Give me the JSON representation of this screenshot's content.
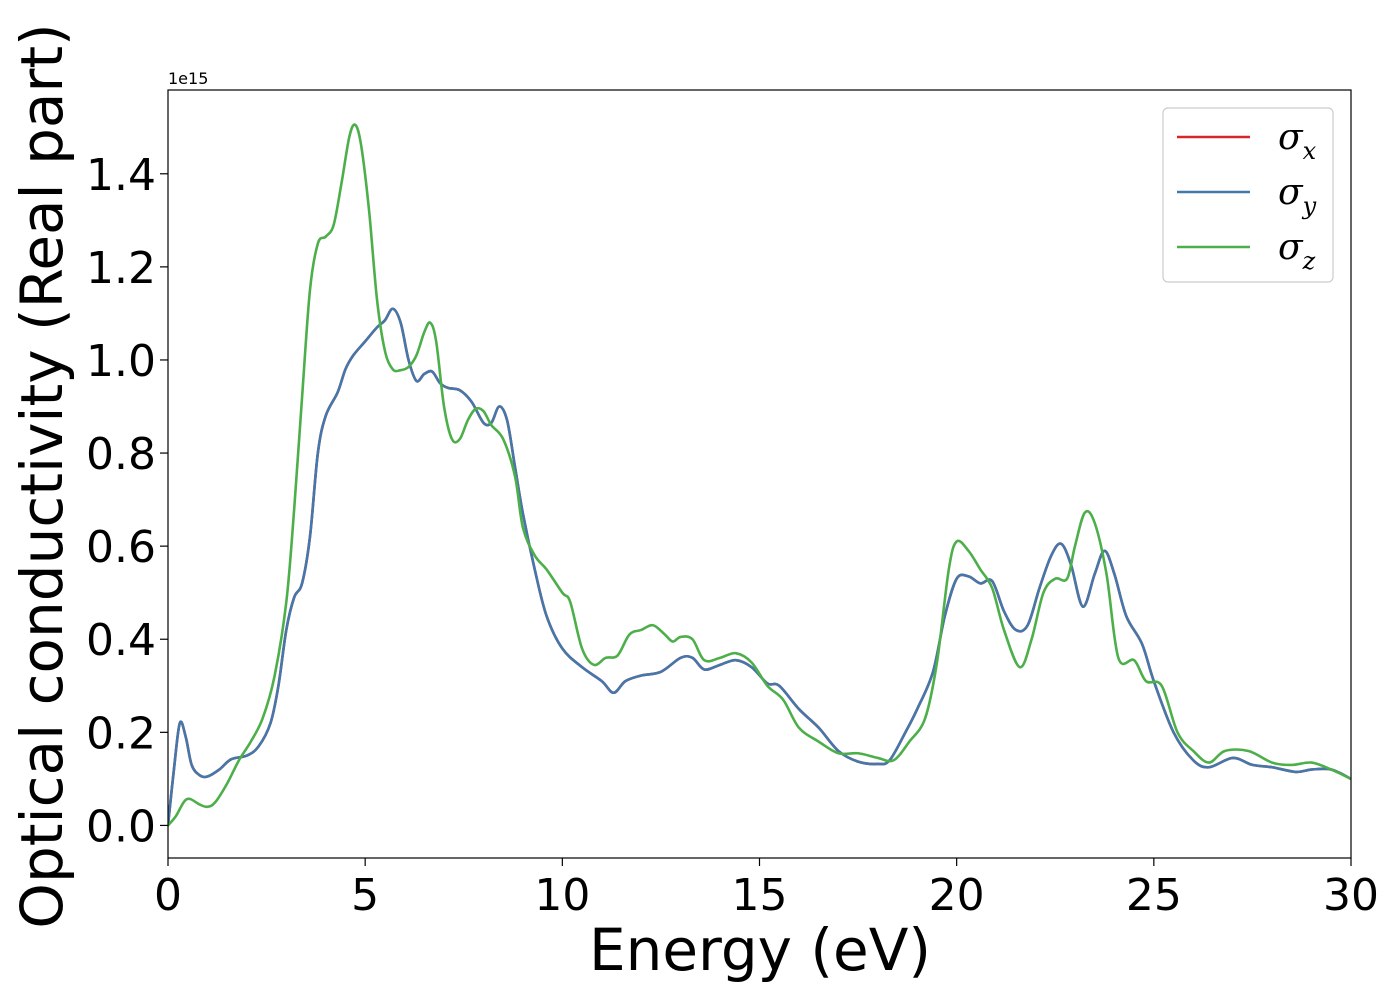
{
  "chart_data": {
    "type": "line",
    "title": "",
    "xlabel": "Energy (eV)",
    "ylabel": "Optical conductivity (Real part)",
    "y_offset_label": "1e15",
    "y_scale": 1000000000000000.0,
    "xlim": [
      0,
      30
    ],
    "ylim": [
      -0.07,
      1.58
    ],
    "x_ticks": [
      0,
      5,
      10,
      15,
      20,
      25,
      30
    ],
    "x_tick_labels": [
      "0",
      "5",
      "10",
      "15",
      "20",
      "25",
      "30"
    ],
    "y_ticks": [
      0.0,
      0.2,
      0.4,
      0.6,
      0.8,
      1.0,
      1.2,
      1.4
    ],
    "y_tick_labels": [
      "0.0",
      "0.2",
      "0.4",
      "0.6",
      "0.8",
      "1.0",
      "1.2",
      "1.4"
    ],
    "grid": false,
    "legend_position": "top-right",
    "series": [
      {
        "name": "σx",
        "name_main": "σ",
        "name_sub": "x",
        "color": "#d62728",
        "points": [
          [
            0,
            0.0
          ],
          [
            0.15,
            0.12
          ],
          [
            0.3,
            0.22
          ],
          [
            0.45,
            0.19
          ],
          [
            0.6,
            0.13
          ],
          [
            0.8,
            0.108
          ],
          [
            1.0,
            0.105
          ],
          [
            1.3,
            0.12
          ],
          [
            1.6,
            0.142
          ],
          [
            2.0,
            0.15
          ],
          [
            2.3,
            0.17
          ],
          [
            2.6,
            0.22
          ],
          [
            2.8,
            0.3
          ],
          [
            3.0,
            0.42
          ],
          [
            3.2,
            0.49
          ],
          [
            3.4,
            0.52
          ],
          [
            3.6,
            0.62
          ],
          [
            3.8,
            0.8
          ],
          [
            4.0,
            0.88
          ],
          [
            4.3,
            0.93
          ],
          [
            4.5,
            0.98
          ],
          [
            4.7,
            1.01
          ],
          [
            5.0,
            1.04
          ],
          [
            5.3,
            1.07
          ],
          [
            5.5,
            1.085
          ],
          [
            5.7,
            1.11
          ],
          [
            5.9,
            1.08
          ],
          [
            6.1,
            1.0
          ],
          [
            6.3,
            0.955
          ],
          [
            6.5,
            0.97
          ],
          [
            6.7,
            0.975
          ],
          [
            6.9,
            0.95
          ],
          [
            7.1,
            0.94
          ],
          [
            7.4,
            0.935
          ],
          [
            7.7,
            0.91
          ],
          [
            8.0,
            0.865
          ],
          [
            8.2,
            0.865
          ],
          [
            8.4,
            0.9
          ],
          [
            8.6,
            0.87
          ],
          [
            8.8,
            0.77
          ],
          [
            9.0,
            0.67
          ],
          [
            9.3,
            0.55
          ],
          [
            9.6,
            0.45
          ],
          [
            10.0,
            0.38
          ],
          [
            10.5,
            0.34
          ],
          [
            11.0,
            0.31
          ],
          [
            11.3,
            0.285
          ],
          [
            11.6,
            0.31
          ],
          [
            12.0,
            0.322
          ],
          [
            12.5,
            0.33
          ],
          [
            13.0,
            0.36
          ],
          [
            13.3,
            0.36
          ],
          [
            13.6,
            0.335
          ],
          [
            14.0,
            0.345
          ],
          [
            14.4,
            0.355
          ],
          [
            14.8,
            0.34
          ],
          [
            15.2,
            0.305
          ],
          [
            15.5,
            0.3
          ],
          [
            16.0,
            0.25
          ],
          [
            16.5,
            0.21
          ],
          [
            17.0,
            0.16
          ],
          [
            17.5,
            0.137
          ],
          [
            18.0,
            0.132
          ],
          [
            18.3,
            0.14
          ],
          [
            18.7,
            0.2
          ],
          [
            19.0,
            0.25
          ],
          [
            19.4,
            0.33
          ],
          [
            19.7,
            0.45
          ],
          [
            20.0,
            0.53
          ],
          [
            20.3,
            0.535
          ],
          [
            20.6,
            0.52
          ],
          [
            20.9,
            0.525
          ],
          [
            21.2,
            0.46
          ],
          [
            21.5,
            0.42
          ],
          [
            21.8,
            0.43
          ],
          [
            22.1,
            0.51
          ],
          [
            22.4,
            0.58
          ],
          [
            22.65,
            0.605
          ],
          [
            22.9,
            0.56
          ],
          [
            23.2,
            0.47
          ],
          [
            23.5,
            0.54
          ],
          [
            23.75,
            0.59
          ],
          [
            24.0,
            0.54
          ],
          [
            24.3,
            0.45
          ],
          [
            24.7,
            0.39
          ],
          [
            25.0,
            0.31
          ],
          [
            25.5,
            0.2
          ],
          [
            26.0,
            0.14
          ],
          [
            26.4,
            0.125
          ],
          [
            27.0,
            0.145
          ],
          [
            27.5,
            0.13
          ],
          [
            28.0,
            0.125
          ],
          [
            28.6,
            0.115
          ],
          [
            29.0,
            0.12
          ],
          [
            29.5,
            0.12
          ],
          [
            30.0,
            0.1
          ]
        ]
      },
      {
        "name": "σy",
        "name_main": "σ",
        "name_sub": "y",
        "color": "#4477aa",
        "points": [
          [
            0,
            0.0
          ],
          [
            0.15,
            0.12
          ],
          [
            0.3,
            0.22
          ],
          [
            0.45,
            0.19
          ],
          [
            0.6,
            0.13
          ],
          [
            0.8,
            0.108
          ],
          [
            1.0,
            0.105
          ],
          [
            1.3,
            0.12
          ],
          [
            1.6,
            0.142
          ],
          [
            2.0,
            0.15
          ],
          [
            2.3,
            0.17
          ],
          [
            2.6,
            0.22
          ],
          [
            2.8,
            0.3
          ],
          [
            3.0,
            0.42
          ],
          [
            3.2,
            0.49
          ],
          [
            3.4,
            0.52
          ],
          [
            3.6,
            0.62
          ],
          [
            3.8,
            0.8
          ],
          [
            4.0,
            0.88
          ],
          [
            4.3,
            0.93
          ],
          [
            4.5,
            0.98
          ],
          [
            4.7,
            1.01
          ],
          [
            5.0,
            1.04
          ],
          [
            5.3,
            1.07
          ],
          [
            5.5,
            1.085
          ],
          [
            5.7,
            1.11
          ],
          [
            5.9,
            1.08
          ],
          [
            6.1,
            1.0
          ],
          [
            6.3,
            0.955
          ],
          [
            6.5,
            0.97
          ],
          [
            6.7,
            0.975
          ],
          [
            6.9,
            0.95
          ],
          [
            7.1,
            0.94
          ],
          [
            7.4,
            0.935
          ],
          [
            7.7,
            0.91
          ],
          [
            8.0,
            0.865
          ],
          [
            8.2,
            0.865
          ],
          [
            8.4,
            0.9
          ],
          [
            8.6,
            0.87
          ],
          [
            8.8,
            0.77
          ],
          [
            9.0,
            0.67
          ],
          [
            9.3,
            0.55
          ],
          [
            9.6,
            0.45
          ],
          [
            10.0,
            0.38
          ],
          [
            10.5,
            0.34
          ],
          [
            11.0,
            0.31
          ],
          [
            11.3,
            0.285
          ],
          [
            11.6,
            0.31
          ],
          [
            12.0,
            0.322
          ],
          [
            12.5,
            0.33
          ],
          [
            13.0,
            0.36
          ],
          [
            13.3,
            0.36
          ],
          [
            13.6,
            0.335
          ],
          [
            14.0,
            0.345
          ],
          [
            14.4,
            0.355
          ],
          [
            14.8,
            0.34
          ],
          [
            15.2,
            0.305
          ],
          [
            15.5,
            0.3
          ],
          [
            16.0,
            0.25
          ],
          [
            16.5,
            0.21
          ],
          [
            17.0,
            0.16
          ],
          [
            17.5,
            0.137
          ],
          [
            18.0,
            0.132
          ],
          [
            18.3,
            0.14
          ],
          [
            18.7,
            0.2
          ],
          [
            19.0,
            0.25
          ],
          [
            19.4,
            0.33
          ],
          [
            19.7,
            0.45
          ],
          [
            20.0,
            0.53
          ],
          [
            20.3,
            0.535
          ],
          [
            20.6,
            0.52
          ],
          [
            20.9,
            0.525
          ],
          [
            21.2,
            0.46
          ],
          [
            21.5,
            0.42
          ],
          [
            21.8,
            0.43
          ],
          [
            22.1,
            0.51
          ],
          [
            22.4,
            0.58
          ],
          [
            22.65,
            0.605
          ],
          [
            22.9,
            0.56
          ],
          [
            23.2,
            0.47
          ],
          [
            23.5,
            0.54
          ],
          [
            23.75,
            0.59
          ],
          [
            24.0,
            0.54
          ],
          [
            24.3,
            0.45
          ],
          [
            24.7,
            0.39
          ],
          [
            25.0,
            0.31
          ],
          [
            25.5,
            0.2
          ],
          [
            26.0,
            0.14
          ],
          [
            26.4,
            0.125
          ],
          [
            27.0,
            0.145
          ],
          [
            27.5,
            0.13
          ],
          [
            28.0,
            0.125
          ],
          [
            28.6,
            0.115
          ],
          [
            29.0,
            0.12
          ],
          [
            29.5,
            0.12
          ],
          [
            30.0,
            0.1
          ]
        ]
      },
      {
        "name": "σz",
        "name_main": "σ",
        "name_sub": "z",
        "color": "#4daf4a",
        "points": [
          [
            0,
            0.0
          ],
          [
            0.2,
            0.02
          ],
          [
            0.4,
            0.05
          ],
          [
            0.55,
            0.057
          ],
          [
            0.8,
            0.045
          ],
          [
            1.0,
            0.04
          ],
          [
            1.2,
            0.05
          ],
          [
            1.5,
            0.09
          ],
          [
            1.8,
            0.14
          ],
          [
            2.1,
            0.18
          ],
          [
            2.4,
            0.23
          ],
          [
            2.7,
            0.32
          ],
          [
            3.0,
            0.48
          ],
          [
            3.2,
            0.68
          ],
          [
            3.4,
            0.92
          ],
          [
            3.6,
            1.15
          ],
          [
            3.8,
            1.25
          ],
          [
            4.0,
            1.265
          ],
          [
            4.2,
            1.29
          ],
          [
            4.4,
            1.38
          ],
          [
            4.6,
            1.48
          ],
          [
            4.75,
            1.505
          ],
          [
            4.9,
            1.46
          ],
          [
            5.1,
            1.32
          ],
          [
            5.3,
            1.13
          ],
          [
            5.5,
            1.02
          ],
          [
            5.7,
            0.98
          ],
          [
            5.9,
            0.978
          ],
          [
            6.1,
            0.985
          ],
          [
            6.3,
            1.01
          ],
          [
            6.5,
            1.06
          ],
          [
            6.65,
            1.08
          ],
          [
            6.8,
            1.04
          ],
          [
            7.0,
            0.9
          ],
          [
            7.2,
            0.83
          ],
          [
            7.4,
            0.83
          ],
          [
            7.6,
            0.87
          ],
          [
            7.8,
            0.895
          ],
          [
            8.0,
            0.89
          ],
          [
            8.2,
            0.86
          ],
          [
            8.5,
            0.83
          ],
          [
            8.8,
            0.75
          ],
          [
            9.0,
            0.64
          ],
          [
            9.3,
            0.58
          ],
          [
            9.6,
            0.55
          ],
          [
            10.0,
            0.5
          ],
          [
            10.2,
            0.48
          ],
          [
            10.5,
            0.38
          ],
          [
            10.8,
            0.345
          ],
          [
            11.1,
            0.36
          ],
          [
            11.4,
            0.365
          ],
          [
            11.7,
            0.41
          ],
          [
            12.0,
            0.42
          ],
          [
            12.3,
            0.43
          ],
          [
            12.6,
            0.41
          ],
          [
            12.8,
            0.395
          ],
          [
            13.0,
            0.405
          ],
          [
            13.3,
            0.4
          ],
          [
            13.6,
            0.355
          ],
          [
            14.0,
            0.36
          ],
          [
            14.4,
            0.37
          ],
          [
            14.8,
            0.35
          ],
          [
            15.2,
            0.3
          ],
          [
            15.6,
            0.27
          ],
          [
            16.0,
            0.21
          ],
          [
            16.5,
            0.18
          ],
          [
            17.0,
            0.155
          ],
          [
            17.5,
            0.155
          ],
          [
            18.0,
            0.145
          ],
          [
            18.4,
            0.14
          ],
          [
            18.8,
            0.18
          ],
          [
            19.2,
            0.23
          ],
          [
            19.5,
            0.35
          ],
          [
            19.8,
            0.55
          ],
          [
            20.0,
            0.61
          ],
          [
            20.3,
            0.59
          ],
          [
            20.6,
            0.55
          ],
          [
            20.9,
            0.51
          ],
          [
            21.2,
            0.42
          ],
          [
            21.6,
            0.34
          ],
          [
            21.9,
            0.4
          ],
          [
            22.2,
            0.5
          ],
          [
            22.5,
            0.53
          ],
          [
            22.8,
            0.53
          ],
          [
            23.0,
            0.6
          ],
          [
            23.25,
            0.672
          ],
          [
            23.5,
            0.65
          ],
          [
            23.8,
            0.54
          ],
          [
            24.1,
            0.36
          ],
          [
            24.5,
            0.355
          ],
          [
            24.8,
            0.31
          ],
          [
            25.2,
            0.3
          ],
          [
            25.6,
            0.2
          ],
          [
            26.0,
            0.16
          ],
          [
            26.4,
            0.135
          ],
          [
            26.8,
            0.16
          ],
          [
            27.4,
            0.16
          ],
          [
            28.0,
            0.135
          ],
          [
            28.5,
            0.13
          ],
          [
            29.0,
            0.135
          ],
          [
            29.5,
            0.12
          ],
          [
            30.0,
            0.1
          ]
        ]
      }
    ]
  }
}
